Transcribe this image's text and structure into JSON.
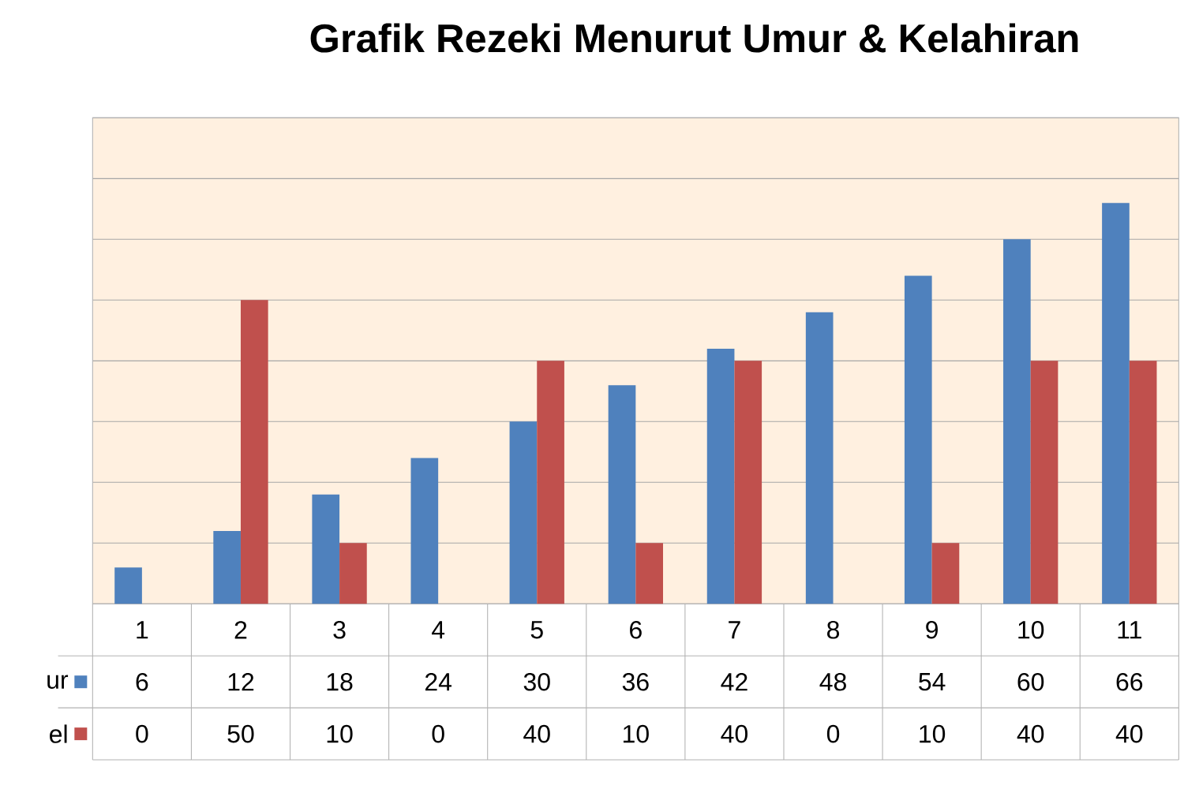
{
  "chart_data": {
    "type": "bar",
    "title": "Grafik Rezeki Menurut Umur & Kelahiran",
    "categories": [
      "1",
      "2",
      "3",
      "4",
      "5",
      "6",
      "7",
      "8",
      "9",
      "10",
      "11"
    ],
    "series": [
      {
        "name": "ur",
        "color": "#4f81bd",
        "values": [
          6,
          12,
          18,
          24,
          30,
          36,
          42,
          48,
          54,
          60,
          66
        ]
      },
      {
        "name": "el",
        "color": "#c0504d",
        "values": [
          0,
          50,
          10,
          0,
          40,
          10,
          40,
          0,
          10,
          40,
          40
        ]
      }
    ],
    "ylim": [
      0,
      80
    ],
    "yticks": [
      {
        "value": 0,
        "label": null
      },
      {
        "value": 10,
        "label": null
      },
      {
        "value": 20,
        "label": null
      },
      {
        "value": 30,
        "label": null
      },
      {
        "value": 40,
        "label": null
      },
      {
        "value": 50,
        "label": null
      },
      {
        "value": 60,
        "label": null
      },
      {
        "value": 70,
        "label": null
      },
      {
        "value": 80,
        "label": null
      }
    ],
    "tick_labels": "x",
    "grid": "y",
    "data_labels": true,
    "legend": "bottom left"
  }
}
